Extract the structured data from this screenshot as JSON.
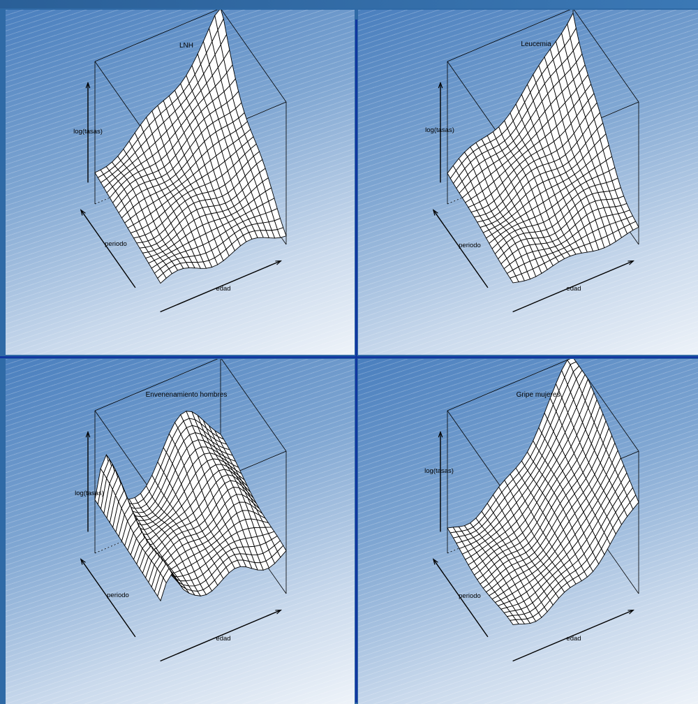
{
  "chart_data": [
    {
      "type": "surface",
      "title": "LNH",
      "zlabel": "log(tasas)",
      "xlabel": "edad",
      "ylabel": "periodo",
      "grid": false,
      "shape": "ridge-peak-at-back-corner"
    },
    {
      "type": "surface",
      "title": "Leucemia",
      "zlabel": "log(tasas)",
      "xlabel": "edad",
      "ylabel": "periodo",
      "grid": false,
      "shape": "ridge-peak-at-back-corner"
    },
    {
      "type": "surface",
      "title": "Envenenamiento hombres",
      "zlabel": "log(tasas)",
      "xlabel": "edad",
      "ylabel": "periodo",
      "grid": false,
      "shape": "sharp-peak-at-young-age"
    },
    {
      "type": "surface",
      "title": "Gripe mujeres",
      "zlabel": "log(tasas)",
      "xlabel": "edad",
      "ylabel": "periodo",
      "grid": false,
      "shape": "rising-with-age"
    }
  ],
  "colors": {
    "mesh_fill": "#ffffff",
    "mesh_line": "#000000",
    "divider": "#1237a0"
  }
}
